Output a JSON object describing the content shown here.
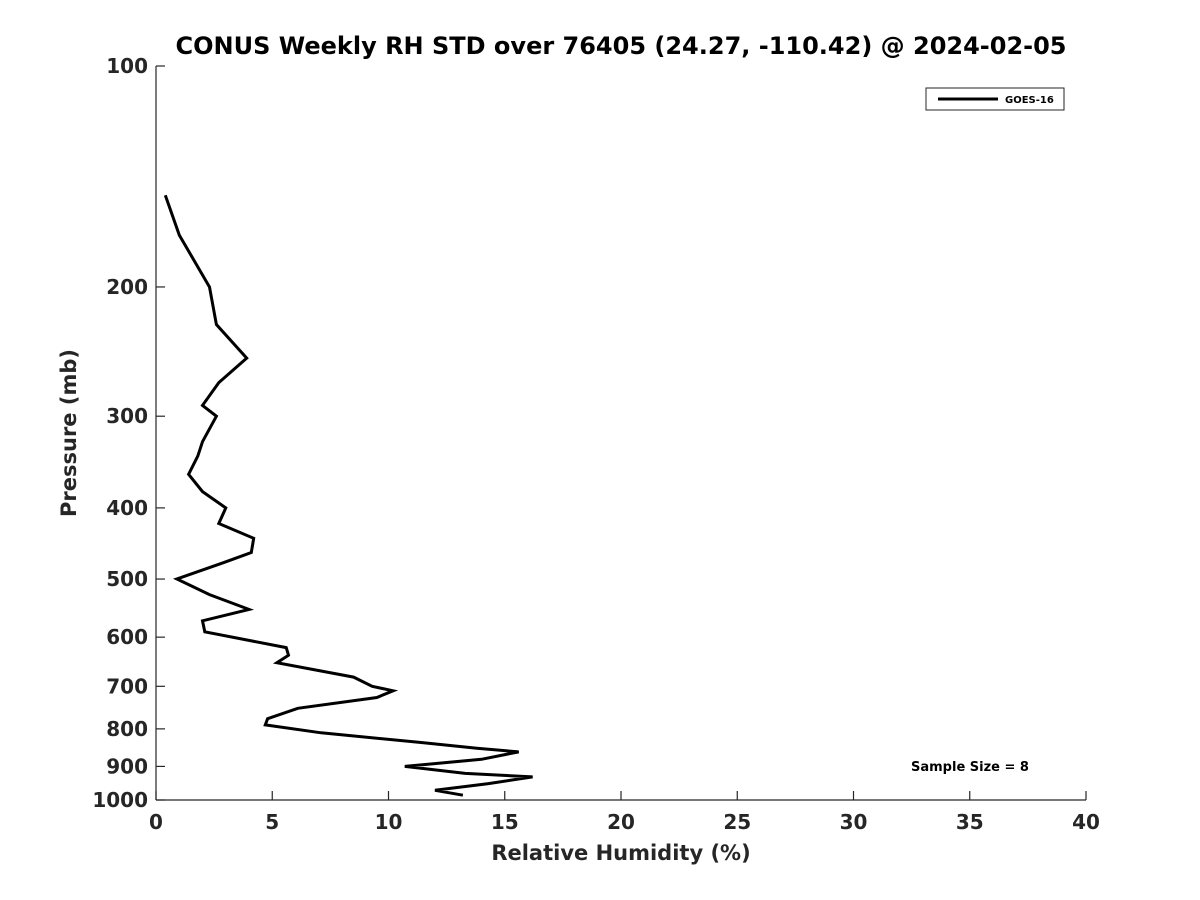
{
  "chart_data": {
    "type": "line",
    "title": "CONUS Weekly RH STD over 76405 (24.27, -110.42) @ 2024-02-05",
    "xlabel": "Relative Humidity (%)",
    "ylabel": "Pressure (mb)",
    "xlim": [
      0,
      40
    ],
    "ylim": [
      100,
      1000
    ],
    "y_scale": "log",
    "y_reversed": true,
    "x_ticks": [
      0,
      5,
      10,
      15,
      20,
      25,
      30,
      35,
      40
    ],
    "y_ticks": [
      100,
      200,
      300,
      400,
      500,
      600,
      700,
      800,
      900,
      1000
    ],
    "grid": false,
    "legend_position": "top-right",
    "series": [
      {
        "name": "GOES-16",
        "color": "#000000",
        "points": [
          [
            0.4,
            150
          ],
          [
            1.0,
            170
          ],
          [
            2.3,
            200
          ],
          [
            2.6,
            225
          ],
          [
            3.9,
            250
          ],
          [
            2.7,
            270
          ],
          [
            2.0,
            290
          ],
          [
            2.6,
            300
          ],
          [
            2.0,
            325
          ],
          [
            1.8,
            340
          ],
          [
            1.4,
            360
          ],
          [
            2.0,
            380
          ],
          [
            3.0,
            400
          ],
          [
            2.7,
            420
          ],
          [
            4.2,
            440
          ],
          [
            4.1,
            460
          ],
          [
            2.9,
            475
          ],
          [
            0.9,
            500
          ],
          [
            2.3,
            525
          ],
          [
            4.0,
            550
          ],
          [
            2.0,
            570
          ],
          [
            2.1,
            590
          ],
          [
            5.6,
            620
          ],
          [
            5.7,
            635
          ],
          [
            5.2,
            650
          ],
          [
            8.5,
            680
          ],
          [
            9.3,
            700
          ],
          [
            10.2,
            710
          ],
          [
            9.5,
            725
          ],
          [
            6.1,
            750
          ],
          [
            4.8,
            775
          ],
          [
            4.7,
            790
          ],
          [
            7.1,
            810
          ],
          [
            11.4,
            835
          ],
          [
            13.8,
            850
          ],
          [
            15.6,
            860
          ],
          [
            14.0,
            880
          ],
          [
            10.7,
            900
          ],
          [
            13.3,
            920
          ],
          [
            16.2,
            930
          ],
          [
            14.3,
            950
          ],
          [
            12.0,
            970
          ],
          [
            13.2,
            985
          ]
        ]
      }
    ],
    "annotations": [
      "Sample Size = 8"
    ]
  }
}
